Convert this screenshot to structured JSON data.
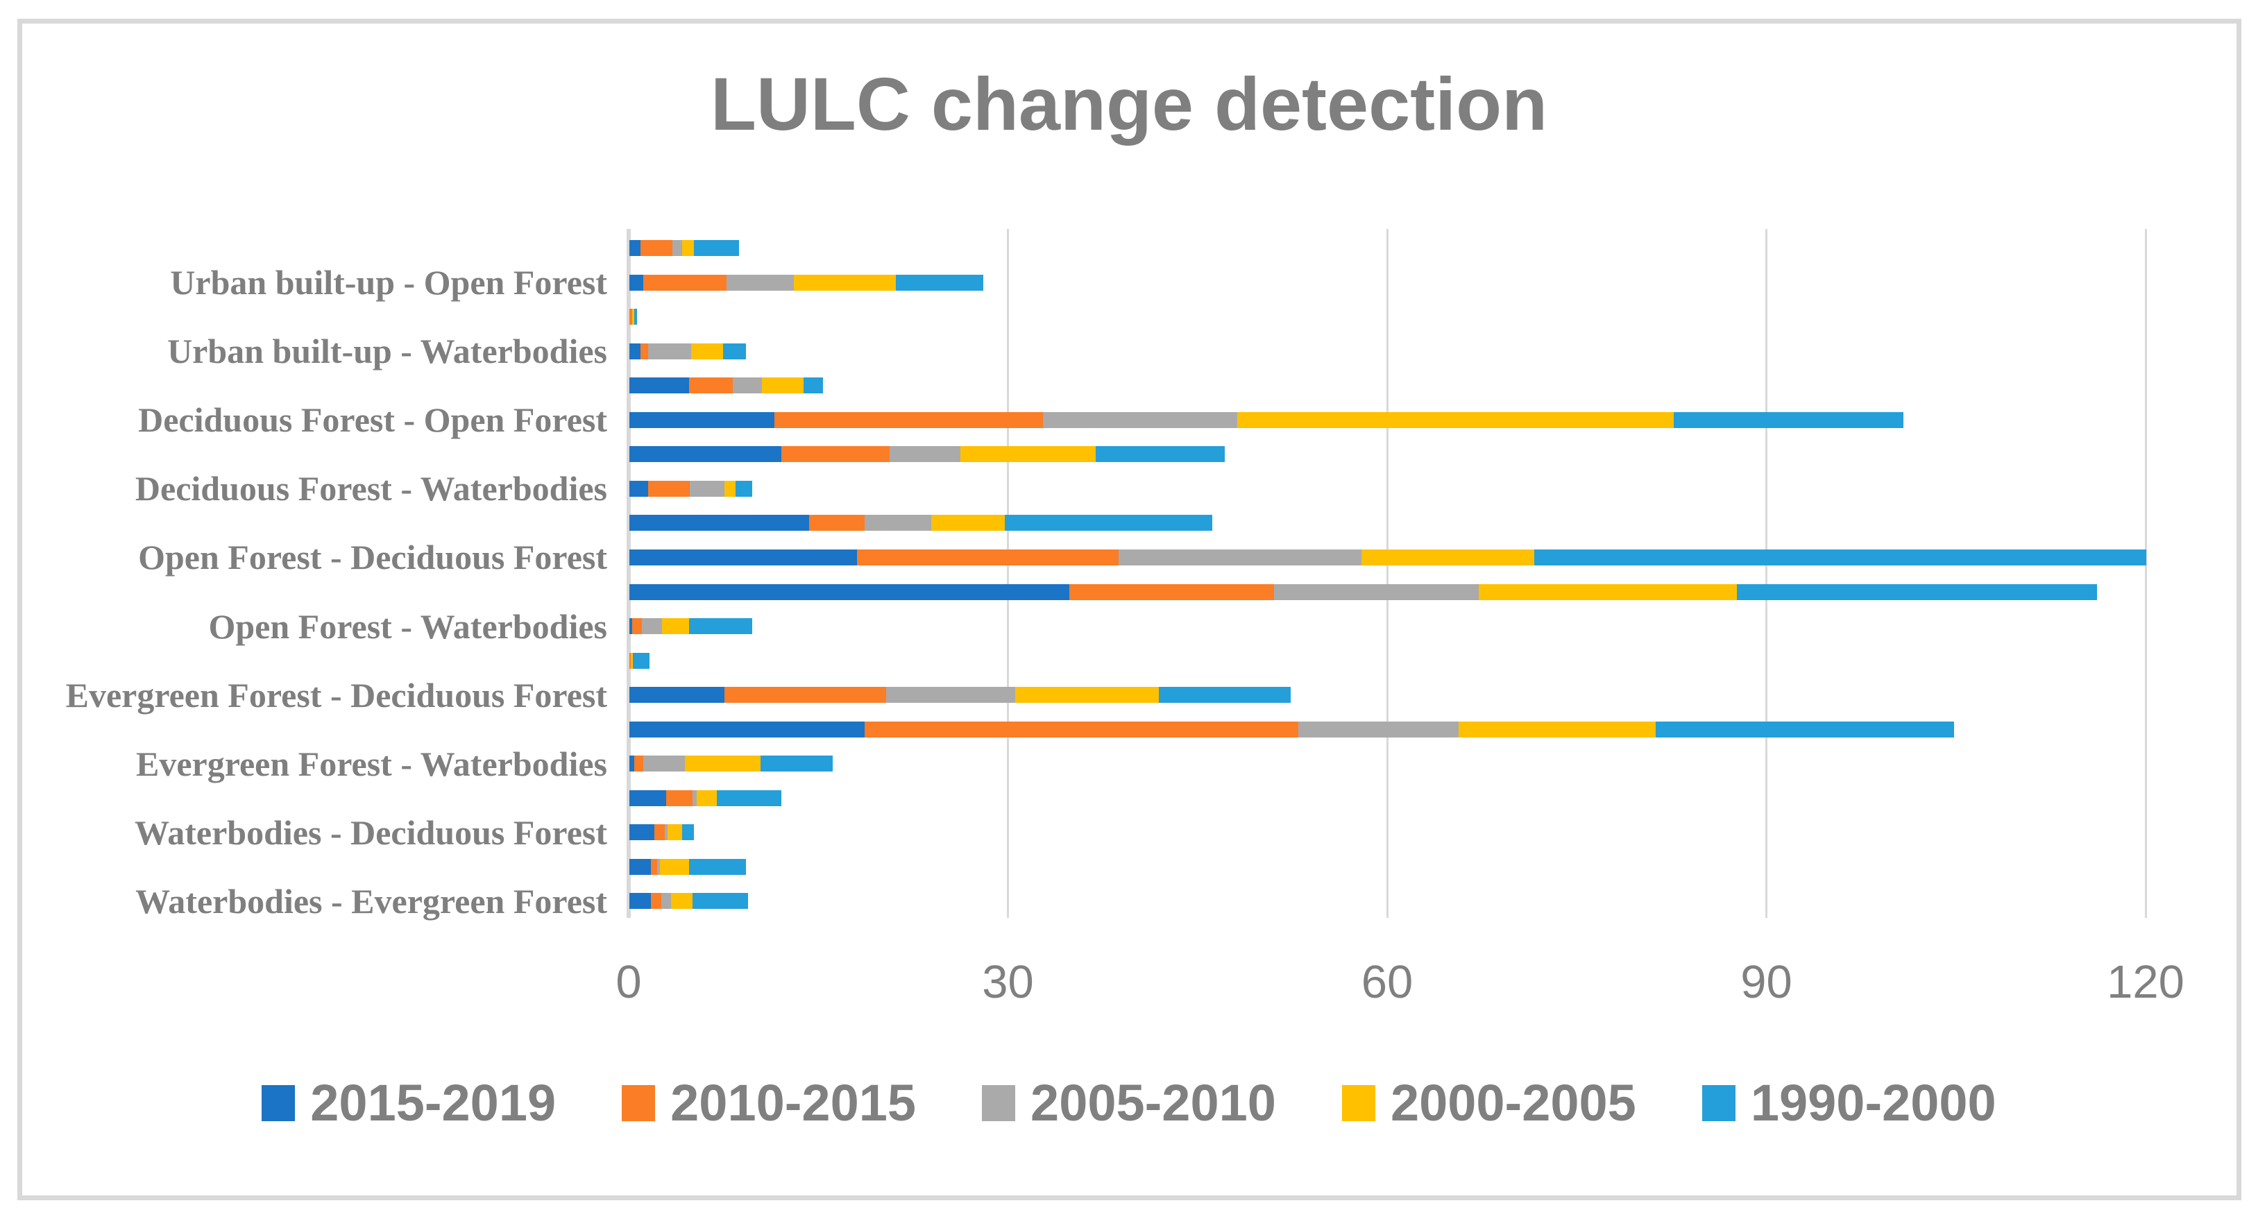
{
  "figure": {
    "background": "#FFFFFF",
    "border_color": "#D9D9D9",
    "grid_color": "#D9D9D9",
    "title_color": "#7F7F7F",
    "axis_text_color": "#808080",
    "category_text_color": "#7F7F7F",
    "legend_text_color": "#808080"
  },
  "chart_data": {
    "type": "bar",
    "orientation": "horizontal",
    "stacked": true,
    "title": "LULC change detection",
    "xlabel": "",
    "ylabel": "",
    "xlim": [
      0,
      120
    ],
    "x_ticks": [
      0,
      30,
      60,
      90,
      120
    ],
    "grid": true,
    "legend_position": "bottom",
    "categories": [
      "",
      "Urban built-up - Open Forest",
      "",
      "Urban built-up - Waterbodies",
      "",
      "Deciduous Forest - Open Forest",
      "",
      "Deciduous Forest - Waterbodies",
      "",
      "Open Forest - Deciduous Forest",
      "",
      "Open Forest - Waterbodies",
      "",
      "Evergreen Forest - Deciduous Forest",
      "",
      "Evergreen Forest - Waterbodies",
      "",
      "Waterbodies - Deciduous Forest",
      "",
      "Waterbodies - Evergreen Forest"
    ],
    "series": [
      {
        "name": "2015-2019",
        "color": "#1B74C5",
        "values": [
          0.9,
          1.1,
          0,
          0.9,
          4.7,
          11.5,
          12.0,
          1.5,
          14.2,
          18.0,
          34.8,
          0.2,
          0,
          7.5,
          18.6,
          0.4,
          2.9,
          2.0,
          1.7,
          1.7
        ]
      },
      {
        "name": "2010-2015",
        "color": "#FB7D26",
        "values": [
          2.5,
          6.6,
          0.2,
          0.6,
          3.5,
          21.2,
          8.6,
          3.3,
          4.4,
          20.7,
          16.2,
          0.8,
          0.1,
          12.8,
          34.3,
          0.7,
          2.1,
          0.8,
          0.5,
          0.8
        ]
      },
      {
        "name": "2005-2010",
        "color": "#AAAAAA",
        "values": [
          0.8,
          5.3,
          0,
          3.4,
          2.3,
          15.4,
          5.6,
          2.7,
          5.3,
          19.2,
          16.2,
          1.6,
          0,
          10.2,
          12.7,
          3.3,
          0.3,
          0.2,
          0.2,
          0.8
        ]
      },
      {
        "name": "2000-2005",
        "color": "#FFC000",
        "values": [
          0.9,
          8.1,
          0.2,
          2.5,
          3.3,
          34.5,
          10.7,
          0.9,
          5.8,
          13.7,
          20.4,
          2.1,
          0.2,
          11.4,
          15.6,
          6.0,
          1.6,
          1.2,
          2.3,
          1.7
        ]
      },
      {
        "name": "1990-2000",
        "color": "#249FDA",
        "values": [
          3.6,
          6.9,
          0.2,
          1.8,
          1.5,
          18.2,
          10.2,
          1.3,
          16.4,
          48.4,
          28.5,
          5.0,
          1.3,
          10.4,
          23.6,
          5.7,
          5.1,
          0.9,
          4.5,
          4.4
        ]
      }
    ]
  }
}
